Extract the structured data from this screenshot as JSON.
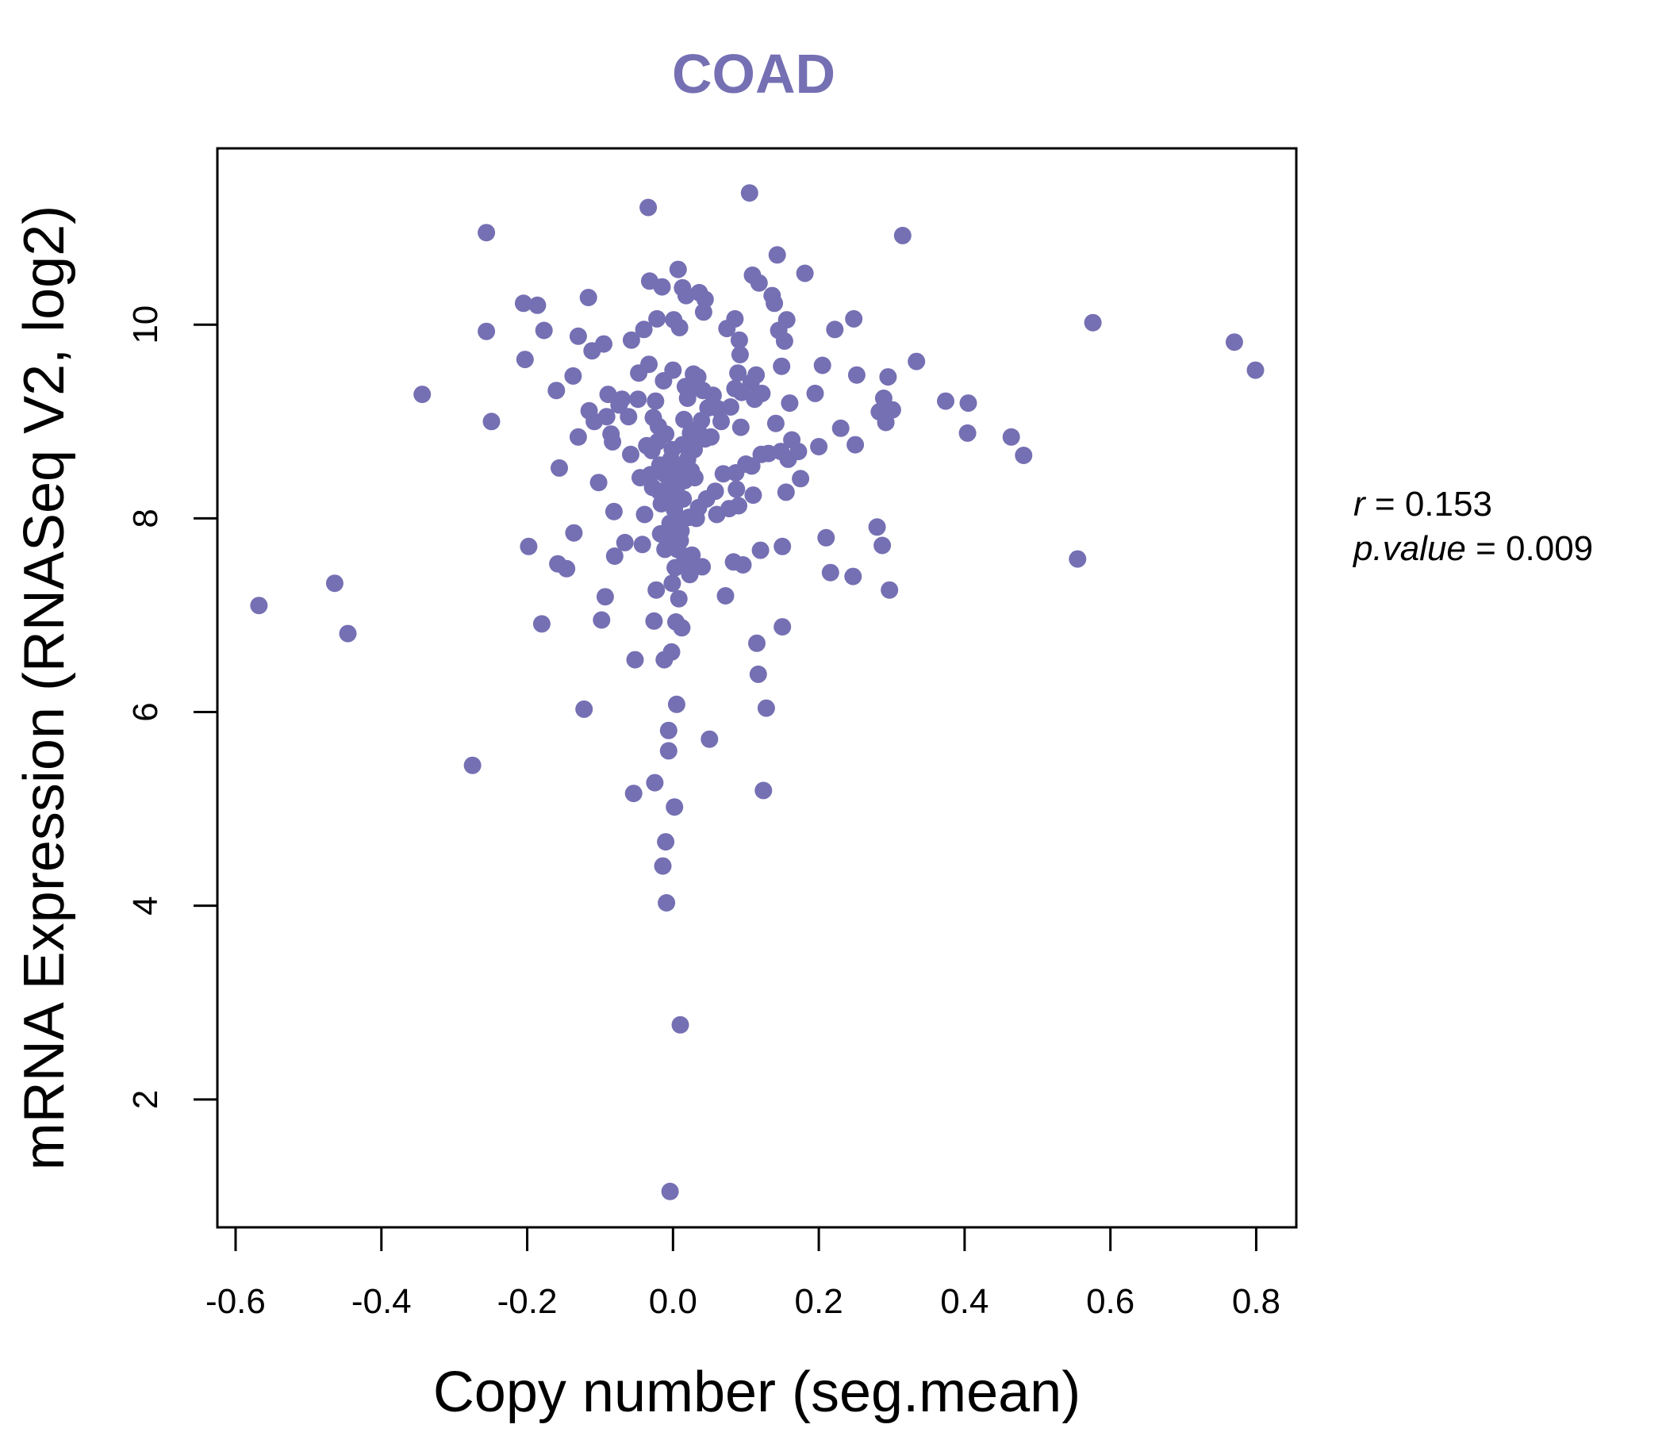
{
  "colors": {
    "point": "#7570B3",
    "title": "#7570B3",
    "axis": "#000000"
  },
  "chart_data": {
    "type": "scatter",
    "title": "COAD",
    "xlabel": "Copy number (seg.mean)",
    "ylabel": "mRNA Expression (RNASeq V2, log2)",
    "xlim": [
      -0.625,
      0.855
    ],
    "ylim": [
      0.68,
      11.82
    ],
    "x_ticks": [
      -0.6,
      -0.4,
      -0.2,
      0.0,
      0.2,
      0.4,
      0.6,
      0.8
    ],
    "x_tick_labels": [
      "-0.6",
      "-0.4",
      "-0.2",
      "0.0",
      "0.2",
      "0.4",
      "0.6",
      "0.8"
    ],
    "y_ticks": [
      2,
      4,
      6,
      8,
      10
    ],
    "y_tick_labels": [
      "2",
      "4",
      "6",
      "8",
      "10"
    ],
    "grid": false,
    "legend": "none",
    "annotations": {
      "r_label": "r",
      "r_eq": " = ",
      "r_value": "0.153",
      "p_label": "p.value",
      "p_eq": " = ",
      "p_value": "0.009"
    },
    "series": [
      {
        "points": [
          [
            -0.568,
            7.1
          ],
          [
            -0.464,
            7.33
          ],
          [
            -0.446,
            6.81
          ],
          [
            -0.344,
            9.28
          ],
          [
            -0.275,
            5.45
          ],
          [
            -0.256,
            10.95
          ],
          [
            -0.256,
            9.93
          ],
          [
            -0.249,
            9.0
          ],
          [
            -0.205,
            10.22
          ],
          [
            -0.203,
            9.64
          ],
          [
            -0.198,
            7.71
          ],
          [
            -0.186,
            10.2
          ],
          [
            -0.18,
            6.91
          ],
          [
            -0.177,
            9.94
          ],
          [
            -0.16,
            9.32
          ],
          [
            -0.158,
            7.53
          ],
          [
            -0.156,
            8.52
          ],
          [
            -0.146,
            7.48
          ],
          [
            -0.137,
            9.47
          ],
          [
            -0.136,
            7.85
          ],
          [
            -0.13,
            9.88
          ],
          [
            -0.13,
            8.84
          ],
          [
            -0.122,
            6.03
          ],
          [
            -0.116,
            10.28
          ],
          [
            -0.115,
            9.11
          ],
          [
            -0.111,
            9.73
          ],
          [
            -0.108,
            9.0
          ],
          [
            -0.102,
            8.37
          ],
          [
            -0.098,
            6.95
          ],
          [
            -0.095,
            9.8
          ],
          [
            -0.093,
            7.19
          ],
          [
            -0.091,
            9.05
          ],
          [
            -0.089,
            9.28
          ],
          [
            -0.085,
            8.87
          ],
          [
            -0.083,
            8.79
          ],
          [
            -0.081,
            8.07
          ],
          [
            -0.08,
            7.61
          ],
          [
            -0.074,
            9.17
          ],
          [
            -0.072,
            9.21
          ],
          [
            -0.07,
            9.23
          ],
          [
            -0.066,
            7.75
          ],
          [
            -0.061,
            9.05
          ],
          [
            -0.058,
            8.66
          ],
          [
            -0.057,
            9.84
          ],
          [
            -0.054,
            5.16
          ],
          [
            -0.052,
            6.54
          ],
          [
            -0.048,
            9.23
          ],
          [
            -0.047,
            9.5
          ],
          [
            -0.045,
            8.42
          ],
          [
            -0.042,
            7.73
          ],
          [
            -0.04,
            9.95
          ],
          [
            -0.039,
            8.04
          ],
          [
            -0.036,
            8.75
          ],
          [
            -0.034,
            11.21
          ],
          [
            -0.033,
            9.59
          ],
          [
            -0.032,
            10.45
          ],
          [
            -0.031,
            8.45
          ],
          [
            -0.029,
            8.7
          ],
          [
            -0.028,
            8.32
          ],
          [
            -0.027,
            9.04
          ],
          [
            -0.026,
            6.94
          ],
          [
            -0.025,
            5.27
          ],
          [
            -0.024,
            9.21
          ],
          [
            -0.023,
            7.26
          ],
          [
            -0.022,
            10.06
          ],
          [
            -0.021,
            8.79
          ],
          [
            -0.02,
            8.95
          ],
          [
            -0.019,
            8.28
          ],
          [
            -0.018,
            8.55
          ],
          [
            -0.017,
            7.84
          ],
          [
            -0.016,
            8.15
          ],
          [
            -0.015,
            10.39
          ],
          [
            -0.014,
            4.41
          ],
          [
            -0.013,
            9.42
          ],
          [
            -0.012,
            6.54
          ],
          [
            -0.012,
            8.46
          ],
          [
            -0.011,
            7.68
          ],
          [
            -0.01,
            8.87
          ],
          [
            -0.01,
            4.66
          ],
          [
            -0.009,
            4.03
          ],
          [
            -0.008,
            8.18
          ],
          [
            -0.007,
            7.81
          ],
          [
            -0.006,
            5.6
          ],
          [
            -0.006,
            5.81
          ],
          [
            -0.005,
            8.4
          ],
          [
            -0.004,
            7.95
          ],
          [
            -0.004,
            1.05
          ],
          [
            -0.003,
            8.61
          ],
          [
            -0.002,
            6.62
          ],
          [
            -0.001,
            7.33
          ],
          [
            -0.001,
            8.71
          ],
          [
            0.0,
            9.53
          ],
          [
            0.001,
            8.3
          ],
          [
            0.001,
            10.05
          ],
          [
            0.002,
            5.02
          ],
          [
            0.002,
            8.09
          ],
          [
            0.003,
            7.49
          ],
          [
            0.004,
            6.93
          ],
          [
            0.004,
            8.53
          ],
          [
            0.005,
            6.08
          ],
          [
            0.006,
            7.68
          ],
          [
            0.006,
            8.0
          ],
          [
            0.007,
            10.57
          ],
          [
            0.008,
            8.36
          ],
          [
            0.008,
            7.17
          ],
          [
            0.009,
            9.97
          ],
          [
            0.01,
            7.77
          ],
          [
            0.01,
            2.77
          ],
          [
            0.011,
            7.87
          ],
          [
            0.012,
            6.87
          ],
          [
            0.012,
            8.48
          ],
          [
            0.013,
            8.76
          ],
          [
            0.013,
            10.38
          ],
          [
            0.014,
            8.2
          ],
          [
            0.015,
            9.02
          ],
          [
            0.016,
            7.61
          ],
          [
            0.016,
            8.39
          ],
          [
            0.017,
            9.36
          ],
          [
            0.018,
            10.3
          ],
          [
            0.02,
            8.61
          ],
          [
            0.02,
            9.24
          ],
          [
            0.021,
            7.55
          ],
          [
            0.022,
            8.01
          ],
          [
            0.023,
            7.42
          ],
          [
            0.024,
            8.88
          ],
          [
            0.025,
            8.49
          ],
          [
            0.026,
            9.35
          ],
          [
            0.026,
            7.62
          ],
          [
            0.027,
            8.91
          ],
          [
            0.028,
            9.49
          ],
          [
            0.029,
            8.71
          ],
          [
            0.03,
            8.42
          ],
          [
            0.031,
            8.85
          ],
          [
            0.032,
            8.0
          ],
          [
            0.033,
            8.8
          ],
          [
            0.034,
            9.46
          ],
          [
            0.035,
            8.11
          ],
          [
            0.036,
            10.33
          ],
          [
            0.038,
            8.86
          ],
          [
            0.039,
            9.01
          ],
          [
            0.04,
            7.5
          ],
          [
            0.041,
            9.32
          ],
          [
            0.042,
            10.13
          ],
          [
            0.044,
            8.82
          ],
          [
            0.044,
            10.26
          ],
          [
            0.046,
            8.2
          ],
          [
            0.048,
            9.14
          ],
          [
            0.05,
            5.72
          ],
          [
            0.052,
            8.84
          ],
          [
            0.055,
            9.27
          ],
          [
            0.058,
            8.28
          ],
          [
            0.06,
            8.04
          ],
          [
            0.062,
            9.13
          ],
          [
            0.066,
            9.0
          ],
          [
            0.069,
            8.46
          ],
          [
            0.072,
            7.2
          ],
          [
            0.074,
            9.96
          ],
          [
            0.077,
            8.1
          ],
          [
            0.079,
            9.15
          ],
          [
            0.083,
            7.55
          ],
          [
            0.085,
            9.34
          ],
          [
            0.085,
            10.06
          ],
          [
            0.086,
            8.47
          ],
          [
            0.087,
            8.3
          ],
          [
            0.089,
            9.5
          ],
          [
            0.09,
            8.13
          ],
          [
            0.091,
            9.84
          ],
          [
            0.092,
            9.69
          ],
          [
            0.093,
            8.94
          ],
          [
            0.094,
            9.3
          ],
          [
            0.096,
            7.52
          ],
          [
            0.1,
            8.56
          ],
          [
            0.105,
            11.36
          ],
          [
            0.107,
            9.4
          ],
          [
            0.108,
            8.54
          ],
          [
            0.109,
            10.51
          ],
          [
            0.11,
            8.24
          ],
          [
            0.112,
            9.23
          ],
          [
            0.114,
            9.48
          ],
          [
            0.115,
            6.71
          ],
          [
            0.117,
            6.39
          ],
          [
            0.118,
            10.43
          ],
          [
            0.12,
            7.67
          ],
          [
            0.121,
            8.66
          ],
          [
            0.122,
            9.29
          ],
          [
            0.124,
            5.19
          ],
          [
            0.128,
            6.04
          ],
          [
            0.131,
            8.67
          ],
          [
            0.136,
            10.3
          ],
          [
            0.139,
            10.22
          ],
          [
            0.141,
            8.98
          ],
          [
            0.143,
            10.72
          ],
          [
            0.145,
            9.94
          ],
          [
            0.148,
            8.69
          ],
          [
            0.149,
            9.57
          ],
          [
            0.15,
            7.71
          ],
          [
            0.15,
            6.88
          ],
          [
            0.153,
            9.83
          ],
          [
            0.155,
            8.27
          ],
          [
            0.156,
            10.05
          ],
          [
            0.158,
            8.61
          ],
          [
            0.16,
            9.19
          ],
          [
            0.163,
            8.81
          ],
          [
            0.172,
            8.69
          ],
          [
            0.175,
            8.41
          ],
          [
            0.181,
            10.53
          ],
          [
            0.195,
            9.29
          ],
          [
            0.2,
            8.74
          ],
          [
            0.205,
            9.58
          ],
          [
            0.21,
            7.8
          ],
          [
            0.216,
            7.44
          ],
          [
            0.222,
            9.95
          ],
          [
            0.23,
            8.93
          ],
          [
            0.247,
            7.4
          ],
          [
            0.248,
            10.06
          ],
          [
            0.25,
            8.76
          ],
          [
            0.252,
            9.48
          ],
          [
            0.28,
            7.91
          ],
          [
            0.283,
            9.1
          ],
          [
            0.287,
            7.72
          ],
          [
            0.289,
            9.24
          ],
          [
            0.292,
            8.99
          ],
          [
            0.295,
            9.46
          ],
          [
            0.297,
            7.26
          ],
          [
            0.301,
            9.12
          ],
          [
            0.315,
            10.92
          ],
          [
            0.334,
            9.62
          ],
          [
            0.374,
            9.21
          ],
          [
            0.404,
            8.88
          ],
          [
            0.405,
            9.19
          ],
          [
            0.464,
            8.84
          ],
          [
            0.481,
            8.65
          ],
          [
            0.555,
            7.58
          ],
          [
            0.576,
            10.02
          ],
          [
            0.77,
            9.82
          ],
          [
            0.799,
            9.53
          ]
        ]
      }
    ]
  }
}
